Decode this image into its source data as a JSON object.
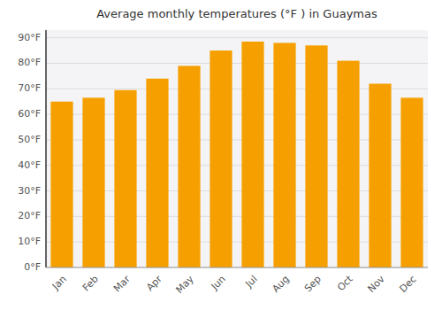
{
  "chart_data": {
    "type": "bar",
    "title": "Average monthly temperatures (°F ) in Guaymas",
    "categories": [
      "Jan",
      "Feb",
      "Mar",
      "Apr",
      "May",
      "Jun",
      "Jul",
      "Aug",
      "Sep",
      "Oct",
      "Nov",
      "Dec"
    ],
    "values": [
      65,
      66.5,
      69.5,
      74,
      79,
      85,
      88.5,
      88,
      87,
      81,
      72,
      66.5
    ],
    "color": "#F5A000",
    "ylim": [
      0,
      93
    ],
    "yticks": [
      {
        "value": 0,
        "label": "0°F"
      },
      {
        "value": 10,
        "label": "10°F"
      },
      {
        "value": 20,
        "label": "20°F"
      },
      {
        "value": 30,
        "label": "30°F"
      },
      {
        "value": 40,
        "label": "40°F"
      },
      {
        "value": 50,
        "label": "50°F"
      },
      {
        "value": 60,
        "label": "60°F"
      },
      {
        "value": 70,
        "label": "70°F"
      },
      {
        "value": 80,
        "label": "80°F"
      },
      {
        "value": 90,
        "label": "90°F"
      }
    ],
    "grid": true
  }
}
